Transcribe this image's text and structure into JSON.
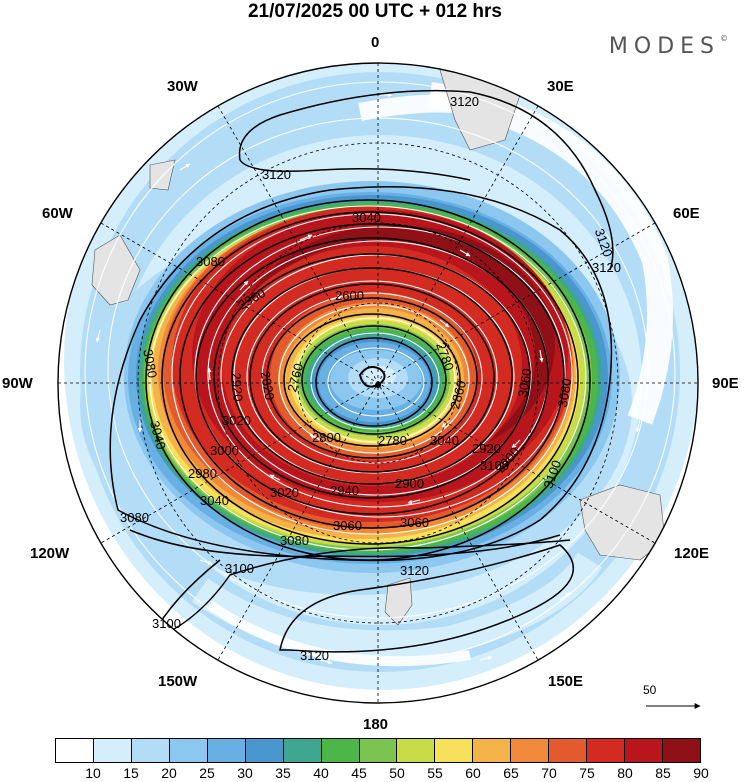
{
  "title": "21/07/2025  00 UTC  + 012 hrs",
  "brand": "MODES",
  "brand_mark": "©",
  "longitude_labels": {
    "top": "0",
    "top_right": "30E",
    "right_upper": "60E",
    "right": "90E",
    "right_lower": "120E",
    "bottom_right": "150E",
    "bottom": "180",
    "bottom_left": "150W",
    "left_lower": "120W",
    "left": "90W",
    "left_upper": "60W",
    "top_left": "30W"
  },
  "contour_labels": [
    "3120",
    "3120",
    "3120",
    "3120",
    "3120",
    "3120",
    "3100",
    "3100",
    "3100",
    "3100",
    "3080",
    "3080",
    "3080",
    "3080",
    "3080",
    "3060",
    "3060",
    "3060",
    "3040",
    "3040",
    "3040",
    "3040",
    "3020",
    "3020",
    "3000",
    "2980",
    "2960",
    "2940",
    "2920",
    "2920",
    "2900",
    "2900",
    "2860",
    "2820",
    "2800",
    "2780",
    "2780",
    "2760",
    "2600"
  ],
  "wind_reference": {
    "value": "50",
    "unit_arrow": "reference vector"
  },
  "colorbar": {
    "ticks": [
      "10",
      "15",
      "20",
      "25",
      "30",
      "35",
      "40",
      "45",
      "50",
      "55",
      "60",
      "65",
      "70",
      "75",
      "80",
      "85",
      "90"
    ],
    "colors": [
      "#ffffff",
      "#d5eefb",
      "#b3ddf7",
      "#8cc7ef",
      "#68b0e3",
      "#4a97cf",
      "#3fa68f",
      "#4cb649",
      "#7cc452",
      "#c8dc48",
      "#f7e05a",
      "#f4b348",
      "#f08a3a",
      "#e25a2d",
      "#d32a22",
      "#b8161c",
      "#8f1017"
    ]
  },
  "map_colors": {
    "land": "#e4e4e4",
    "jet_core": "#a81318"
  }
}
